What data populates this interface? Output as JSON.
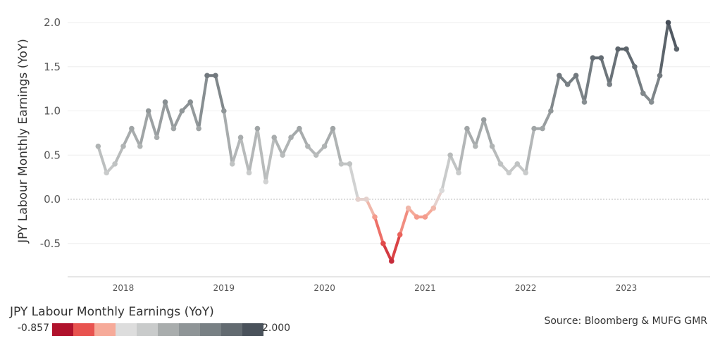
{
  "chart_data": {
    "type": "line",
    "ylabel": "JPY Labour Monthly Earnings (YoY)",
    "ylim": [
      -0.85,
      2.1
    ],
    "yticks": [
      "2.0",
      "1.5",
      "1.0",
      "0.5",
      "0.0",
      "-0.5"
    ],
    "ytick_values": [
      2.0,
      1.5,
      1.0,
      0.5,
      0.0,
      -0.5
    ],
    "xticks": [
      "2018",
      "2019",
      "2020",
      "2021",
      "2022",
      "2023"
    ],
    "xtick_values": [
      "2018-01",
      "2019-01",
      "2020-01",
      "2021-01",
      "2022-01",
      "2023-01"
    ],
    "x": [
      "2017-10",
      "2017-11",
      "2017-12",
      "2018-01",
      "2018-02",
      "2018-03",
      "2018-04",
      "2018-05",
      "2018-06",
      "2018-07",
      "2018-08",
      "2018-09",
      "2018-10",
      "2018-11",
      "2018-12",
      "2019-01",
      "2019-02",
      "2019-03",
      "2019-04",
      "2019-05",
      "2019-06",
      "2019-07",
      "2019-08",
      "2019-09",
      "2019-10",
      "2019-11",
      "2019-12",
      "2020-01",
      "2020-02",
      "2020-03",
      "2020-04",
      "2020-05",
      "2020-06",
      "2020-07",
      "2020-08",
      "2020-09",
      "2020-10",
      "2020-11",
      "2020-12",
      "2021-01",
      "2021-02",
      "2021-03",
      "2021-04",
      "2021-05",
      "2021-06",
      "2021-07",
      "2021-08",
      "2021-09",
      "2021-10",
      "2021-11",
      "2021-12",
      "2022-01",
      "2022-02",
      "2022-03",
      "2022-04",
      "2022-05",
      "2022-06",
      "2022-07",
      "2022-08",
      "2022-09",
      "2022-10",
      "2022-11",
      "2022-12",
      "2023-01",
      "2023-02",
      "2023-03",
      "2023-04",
      "2023-05",
      "2023-06",
      "2023-07"
    ],
    "values": [
      0.6,
      0.3,
      0.4,
      0.6,
      0.8,
      0.6,
      1.0,
      0.7,
      1.1,
      0.8,
      1.0,
      1.1,
      0.8,
      1.4,
      1.4,
      1.0,
      0.4,
      0.7,
      0.3,
      0.8,
      0.2,
      0.7,
      0.5,
      0.7,
      0.8,
      0.6,
      0.5,
      0.6,
      0.8,
      0.4,
      0.4,
      0.0,
      0.0,
      -0.2,
      -0.5,
      -0.7,
      -0.4,
      -0.1,
      -0.2,
      -0.2,
      -0.1,
      0.1,
      0.5,
      0.3,
      0.8,
      0.6,
      0.9,
      0.6,
      0.4,
      0.3,
      0.4,
      0.3,
      0.8,
      0.8,
      1.0,
      1.4,
      1.3,
      1.4,
      1.1,
      1.6,
      1.6,
      1.3,
      1.7,
      1.7,
      1.5,
      1.2,
      1.1,
      1.4,
      2.0,
      1.7
    ],
    "grid": true,
    "color_scale": {
      "min_label": "-0.857",
      "max_label": "2.000",
      "colors": [
        "#b0122c",
        "#e8534f",
        "#f6aa99",
        "#dddddd",
        "#c9cbcb",
        "#a9adad",
        "#8f9597",
        "#788084",
        "#636b71",
        "#4a525b"
      ]
    }
  },
  "legend": {
    "title": "JPY Labour Monthly Earnings (YoY)",
    "min": "-0.857",
    "max": "2.000"
  },
  "source": "Source: Bloomberg & MUFG GMR"
}
